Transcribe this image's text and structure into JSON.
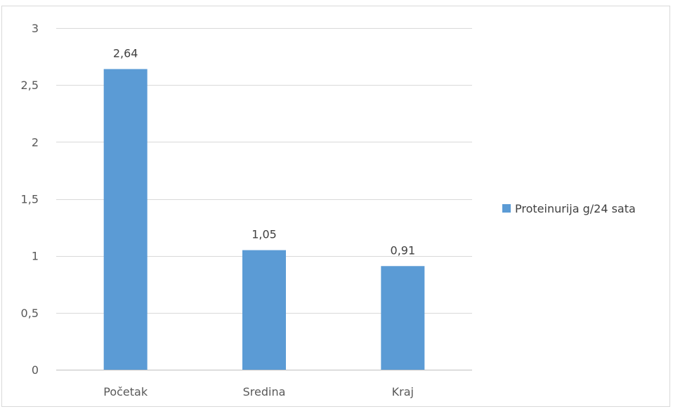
{
  "chart_data": {
    "type": "bar",
    "categories": [
      "Početak",
      "Sredina",
      "Kraj"
    ],
    "series": [
      {
        "name": "Proteinurija g/24 sata",
        "values": [
          2.64,
          1.05,
          0.91
        ],
        "data_labels": [
          "2,64",
          "1,05",
          "0,91"
        ],
        "color": "#5b9bd5"
      }
    ],
    "ylim": [
      0,
      3
    ],
    "yticks": [
      0,
      0.5,
      1,
      1.5,
      2,
      2.5,
      3
    ],
    "ytick_labels": [
      "0",
      "0,5",
      "1",
      "1,5",
      "2",
      "2,5",
      "3"
    ],
    "grid": true,
    "legend": "right",
    "title": "",
    "xlabel": "",
    "ylabel": ""
  }
}
